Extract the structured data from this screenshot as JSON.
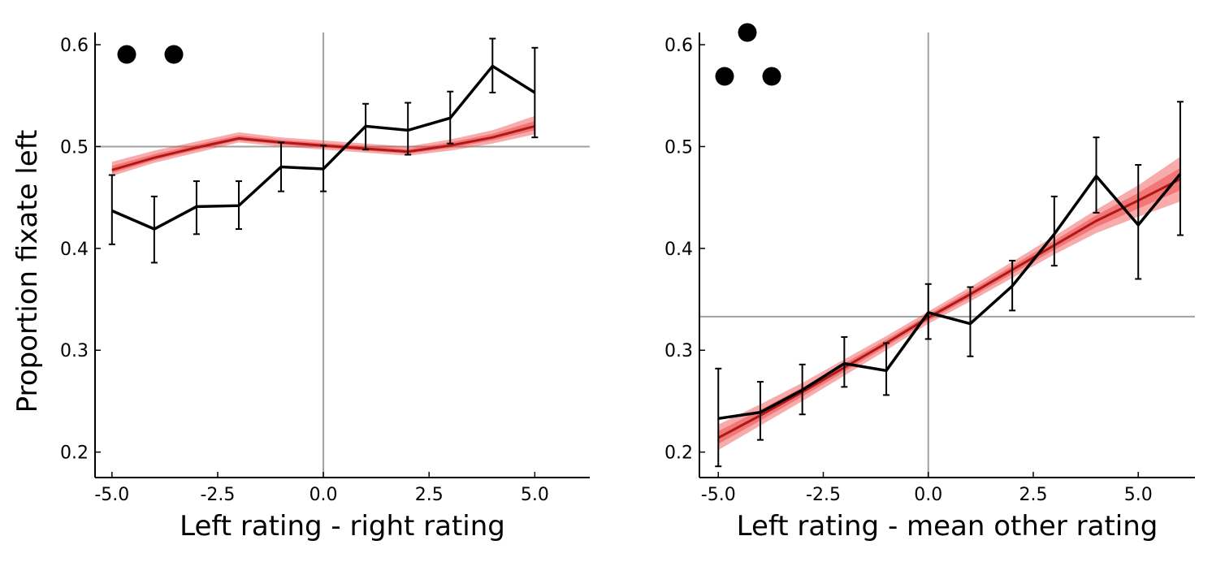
{
  "chart_data": [
    {
      "type": "line",
      "xlabel": "Left rating - right rating",
      "ylabel": "Proportion fixate left",
      "xlim": [
        -5.4,
        6.3
      ],
      "ylim": [
        0.175,
        0.612
      ],
      "xticks": [
        -5,
        -2.5,
        0,
        2.5,
        5
      ],
      "xtick_labels": [
        "-5.0",
        "-2.5",
        "0.0",
        "2.5",
        "5.0"
      ],
      "yticks": [
        0.2,
        0.3,
        0.4,
        0.5,
        0.6
      ],
      "ytick_labels": [
        "0.2",
        "0.3",
        "0.4",
        "0.5",
        "0.6"
      ],
      "reference_lines": {
        "horizontal": 0.5,
        "vertical": 0
      },
      "markers_count": 2,
      "series": [
        {
          "style": "data",
          "color": "#000000",
          "x": [
            -5,
            -4,
            -3,
            -2,
            -1,
            0,
            1,
            2,
            3,
            4,
            5
          ],
          "y": [
            0.437,
            0.419,
            0.441,
            0.442,
            0.48,
            0.478,
            0.52,
            0.516,
            0.528,
            0.579,
            0.553
          ],
          "err_low": [
            0.404,
            0.386,
            0.414,
            0.419,
            0.456,
            0.456,
            0.497,
            0.492,
            0.503,
            0.553,
            0.509
          ],
          "err_high": [
            0.472,
            0.451,
            0.466,
            0.466,
            0.504,
            0.501,
            0.542,
            0.543,
            0.554,
            0.606,
            0.597
          ]
        },
        {
          "style": "model",
          "color": "#b01818",
          "band_color": "#ee4444",
          "x": [
            -5,
            -4,
            -3,
            -2,
            -1,
            0,
            1,
            2,
            3,
            4,
            5
          ],
          "y": [
            0.477,
            0.489,
            0.499,
            0.508,
            0.504,
            0.501,
            0.498,
            0.495,
            0.501,
            0.509,
            0.52
          ],
          "lo": [
            0.471,
            0.484,
            0.494,
            0.504,
            0.5,
            0.497,
            0.494,
            0.491,
            0.496,
            0.503,
            0.512
          ],
          "hi": [
            0.485,
            0.496,
            0.505,
            0.514,
            0.509,
            0.506,
            0.503,
            0.5,
            0.507,
            0.516,
            0.53
          ]
        }
      ]
    },
    {
      "type": "line",
      "xlabel": "Left rating - mean other rating",
      "ylabel": "",
      "xlim": [
        -5.45,
        6.35
      ],
      "ylim": [
        0.175,
        0.612
      ],
      "xticks": [
        -5,
        -2.5,
        0,
        2.5,
        5
      ],
      "xtick_labels": [
        "-5.0",
        "-2.5",
        "0.0",
        "2.5",
        "5.0"
      ],
      "yticks": [
        0.2,
        0.3,
        0.4,
        0.5,
        0.6
      ],
      "ytick_labels": [
        "0.2",
        "0.3",
        "0.4",
        "0.5",
        "0.6"
      ],
      "reference_lines": {
        "horizontal": 0.333,
        "vertical": 0
      },
      "markers_count": 3,
      "series": [
        {
          "style": "data",
          "color": "#000000",
          "x": [
            -5,
            -4,
            -3,
            -2,
            -1,
            0,
            1,
            2,
            3,
            4,
            5,
            6
          ],
          "y": [
            0.233,
            0.239,
            0.261,
            0.287,
            0.28,
            0.337,
            0.326,
            0.363,
            0.414,
            0.471,
            0.423,
            0.473
          ],
          "err_low": [
            0.186,
            0.212,
            0.237,
            0.264,
            0.256,
            0.311,
            0.294,
            0.339,
            0.383,
            0.435,
            0.37,
            0.413
          ],
          "err_high": [
            0.282,
            0.269,
            0.286,
            0.313,
            0.307,
            0.365,
            0.362,
            0.388,
            0.451,
            0.509,
            0.482,
            0.544
          ]
        },
        {
          "style": "model",
          "color": "#b01818",
          "band_color": "#ee4444",
          "x": [
            -5,
            -4,
            -3,
            -2,
            -1,
            0,
            1,
            2,
            3,
            4,
            5,
            6
          ],
          "y": [
            0.214,
            0.236,
            0.259,
            0.283,
            0.307,
            0.332,
            0.355,
            0.379,
            0.403,
            0.427,
            0.447,
            0.468
          ],
          "lo": [
            0.202,
            0.226,
            0.25,
            0.275,
            0.3,
            0.326,
            0.348,
            0.371,
            0.394,
            0.415,
            0.431,
            0.446
          ],
          "hi": [
            0.227,
            0.247,
            0.268,
            0.291,
            0.314,
            0.338,
            0.362,
            0.387,
            0.412,
            0.438,
            0.462,
            0.49
          ]
        }
      ]
    }
  ]
}
